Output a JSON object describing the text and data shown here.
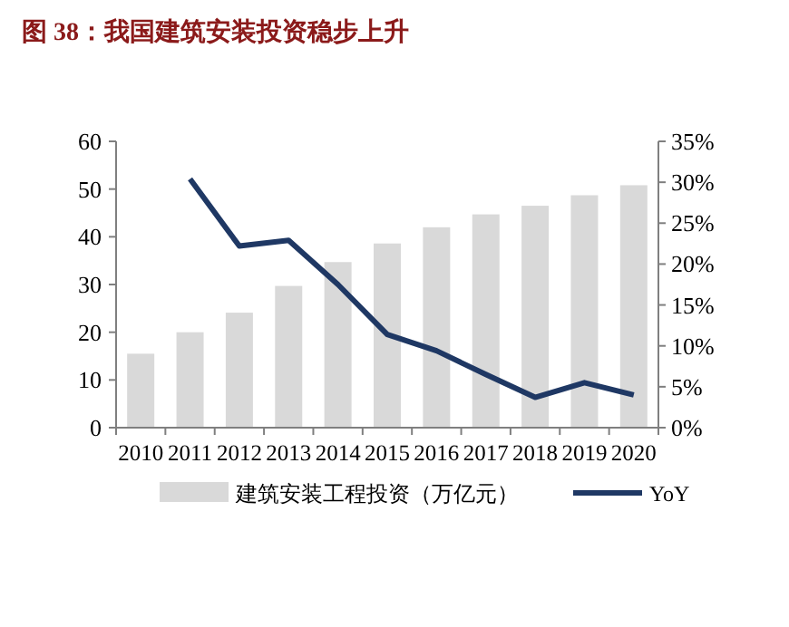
{
  "chart_data": {
    "type": "bar",
    "title": "图 38：我国建筑安装投资稳步上升",
    "categories": [
      "2010",
      "2011",
      "2012",
      "2013",
      "2014",
      "2015",
      "2016",
      "2017",
      "2018",
      "2019",
      "2020"
    ],
    "series": [
      {
        "name": "建筑安装工程投资（万亿元）",
        "color": "#d9d9d9",
        "values": [
          15.5,
          20.0,
          24.1,
          29.7,
          34.7,
          38.6,
          42.0,
          44.7,
          46.5,
          48.7,
          50.8
        ]
      },
      {
        "name": "YoY",
        "type": "line",
        "axis": "y2",
        "color": "#1f3864",
        "values": [
          null,
          30.4,
          22.2,
          22.9,
          17.5,
          11.4,
          9.4,
          6.5,
          3.7,
          5.5,
          4.0
        ]
      }
    ],
    "ylim": [
      0,
      60
    ],
    "yticks": [
      0,
      10,
      20,
      30,
      40,
      50,
      60
    ],
    "y2lim": [
      0,
      35
    ],
    "y2ticks": [
      {
        "value": 0,
        "label": "0%"
      },
      {
        "value": 5,
        "label": "5%"
      },
      {
        "value": 10,
        "label": "10%"
      },
      {
        "value": 15,
        "label": "15%"
      },
      {
        "value": 20,
        "label": "20%"
      },
      {
        "value": 25,
        "label": "25%"
      },
      {
        "value": 30,
        "label": "30%"
      },
      {
        "value": 35,
        "label": "35%"
      }
    ],
    "legend": "bottom"
  }
}
